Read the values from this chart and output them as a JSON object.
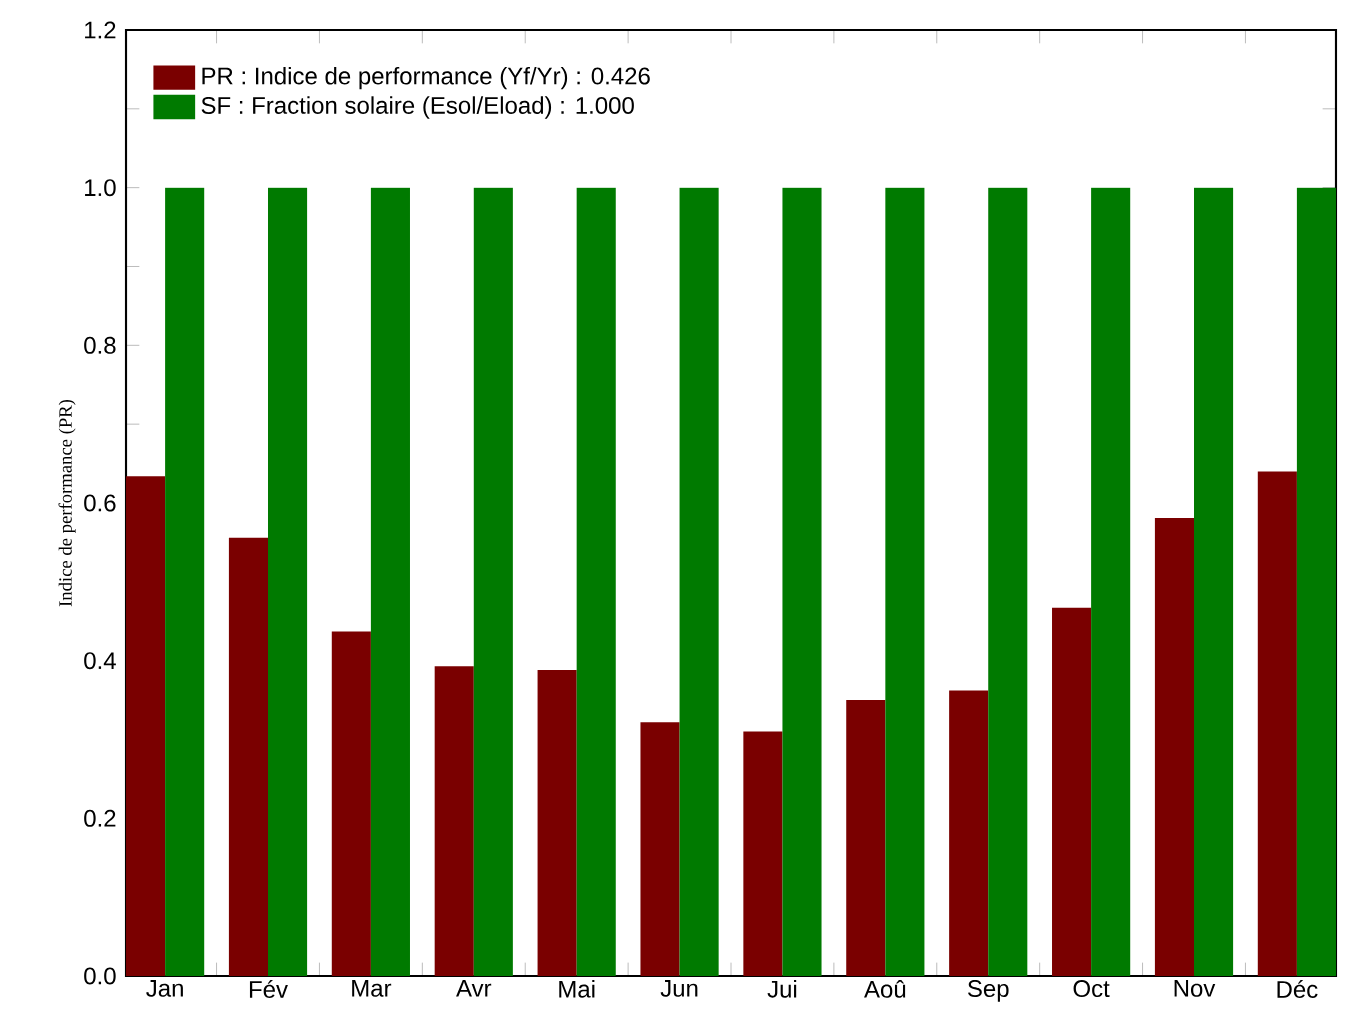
{
  "chart_data": {
    "type": "bar",
    "ylabel": "Indice de performance (PR)",
    "categories": [
      "Jan",
      "Fév",
      "Mar",
      "Avr",
      "Mai",
      "Jun",
      "Jui",
      "Aoû",
      "Sep",
      "Oct",
      "Nov",
      "Déc"
    ],
    "series": [
      {
        "name": "PR : Indice de performance  (Yf/Yr) : 0.426",
        "color": "#7a0000",
        "values": [
          0.634,
          0.556,
          0.437,
          0.393,
          0.388,
          0.322,
          0.31,
          0.35,
          0.362,
          0.467,
          0.581,
          0.64
        ]
      },
      {
        "name": "SF : Fraction solaire  (Esol/Eload) :    1.000",
        "color": "#007a00",
        "values": [
          1.0,
          1.0,
          1.0,
          1.0,
          1.0,
          1.0,
          1.0,
          1.0,
          1.0,
          1.0,
          1.0,
          1.0
        ]
      }
    ],
    "ylim": [
      0,
      1.2
    ],
    "yticks": [
      {
        "value": 0,
        "label": "0.0"
      },
      0.2,
      0.4,
      0.6,
      0.8,
      {
        "value": 1,
        "label": "1.0"
      },
      1.2
    ],
    "legend": "top left"
  }
}
